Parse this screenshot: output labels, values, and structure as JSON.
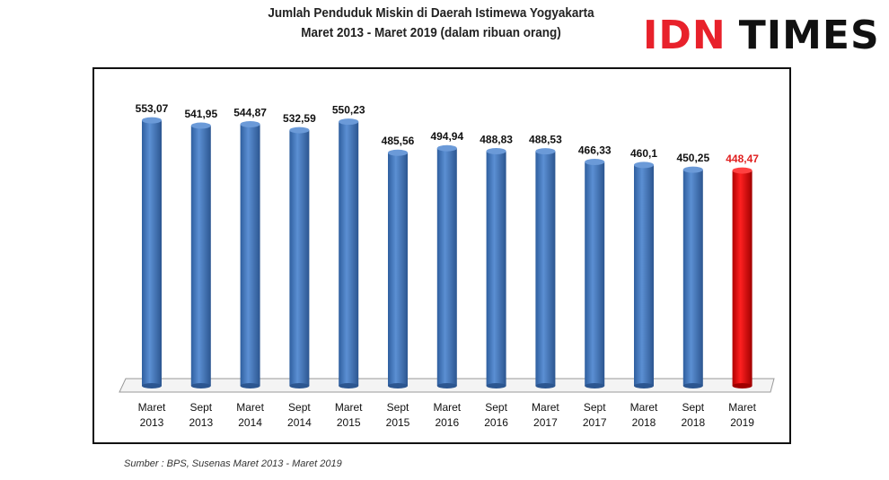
{
  "title_line1": "Jumlah Penduduk Miskin di Daerah Istimewa Yogyakarta",
  "title_line2": "Maret 2013 - Maret 2019 (dalam ribuan orang)",
  "logo": {
    "part1": "IDN",
    "part2": "TIMES"
  },
  "source": "Sumber : BPS, Susenas Maret 2013 - Maret 2019",
  "chart_data": {
    "type": "bar",
    "categories": [
      [
        "Maret",
        "2013"
      ],
      [
        "Sept",
        "2013"
      ],
      [
        "Maret",
        "2014"
      ],
      [
        "Sept",
        "2014"
      ],
      [
        "Maret",
        "2015"
      ],
      [
        "Sept",
        "2015"
      ],
      [
        "Maret",
        "2016"
      ],
      [
        "Sept",
        "2016"
      ],
      [
        "Maret",
        "2017"
      ],
      [
        "Sept",
        "2017"
      ],
      [
        "Maret",
        "2018"
      ],
      [
        "Sept",
        "2018"
      ],
      [
        "Maret",
        "2019"
      ]
    ],
    "values": [
      553.07,
      541.95,
      544.87,
      532.59,
      550.23,
      485.56,
      494.94,
      488.83,
      488.53,
      466.33,
      460.1,
      450.25,
      448.47
    ],
    "data_labels": [
      "553,07",
      "541,95",
      "544,87",
      "532,59",
      "550,23",
      "485,56",
      "494,94",
      "488,83",
      "488,53",
      "466,33",
      "460,1",
      "450,25",
      "448,47"
    ],
    "ylim": [
      0,
      600
    ],
    "grid": false,
    "colors": {
      "bar": "#4a7cc0",
      "highlight": "#e01010",
      "highlight_label": "#e02020"
    }
  }
}
